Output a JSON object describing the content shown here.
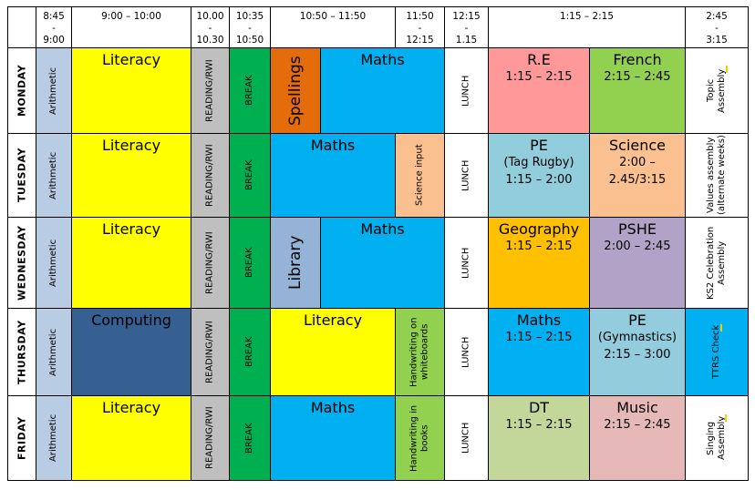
{
  "times": [
    "8:45\n-\n9:00",
    "9:00 – 10:00",
    "10.00\n-\n10.30",
    "10:35\n-\n10:50",
    "10:50 – 11:50",
    "11:50\n-\n12:15",
    "12:15\n-\n1.15",
    "1:15 – 2:15",
    "2:45\n-\n3:15"
  ],
  "days": [
    "MONDAY",
    "TUESDAY",
    "WEDNESDAY",
    "THURSDAY",
    "FRIDAY"
  ],
  "arithmetic": "Arithmetic",
  "reading": "READING/RWI",
  "break_label": "BREAK",
  "lunch": "LUNCH",
  "monday": {
    "literacy": "Literacy",
    "spellings": "Spellings",
    "maths": "Maths",
    "re_title": "R.E",
    "re_time": "1:15 – 2:15",
    "french_title": "French",
    "french_time": "2:15 – 2:45",
    "end": "Topic\nAssembly"
  },
  "tuesday": {
    "literacy": "Literacy",
    "maths": "Maths",
    "science_input": "Science input",
    "pe_title": "PE",
    "pe_times": "(Tag Rugby)\n1:15 – 2:00",
    "science_title": "Science",
    "science_times": "2:00 –\n2.45/3:15",
    "end": "Values assembly\n(alternate weeks)"
  },
  "wednesday": {
    "literacy": "Literacy",
    "library": "Library",
    "maths": "Maths",
    "geography_title": "Geography",
    "geography_time": "1:15 – 2:15",
    "pshe_title": "PSHE",
    "pshe_time": "2:00 – 2:45",
    "end": "KS2 Celebration\nAssembly"
  },
  "thursday": {
    "computing": "Computing",
    "literacy": "Literacy",
    "handwriting": "Handwriting on\nwhiteboards",
    "maths_title": "Maths",
    "maths_time": "1:15 – 2:15",
    "pe_title": "PE",
    "pe_times": "(Gymnastics)\n2:15 – 3:00",
    "end": "TTRS Check"
  },
  "friday": {
    "literacy": "Literacy",
    "maths": "Maths",
    "handwriting": "Handwriting in\nbooks",
    "dt_title": "DT",
    "dt_time": "1:15 – 2:15",
    "music_title": "Music",
    "music_time": "2:15 – 2:45",
    "end": "Singing\nAssembly"
  },
  "colors": {
    "arithmetic": "#b8cce4",
    "literacy": "#ffff00",
    "reading": "#bfbfbf",
    "break": "#00b050",
    "maths": "#00b0f0",
    "spellings": "#e46c0a",
    "re": "#ff9999",
    "french": "#92d050",
    "science": "#fac090",
    "pe_tue": "#92cddc",
    "geography": "#ffc000",
    "pshe": "#b3a2c7",
    "library": "#95b3d7",
    "computing": "#366092",
    "handwriting": "#92d050",
    "pe_thu": "#93cddd",
    "dt": "#c4d79b",
    "music": "#e6b9b8",
    "ttrs": "#00b0f0"
  }
}
